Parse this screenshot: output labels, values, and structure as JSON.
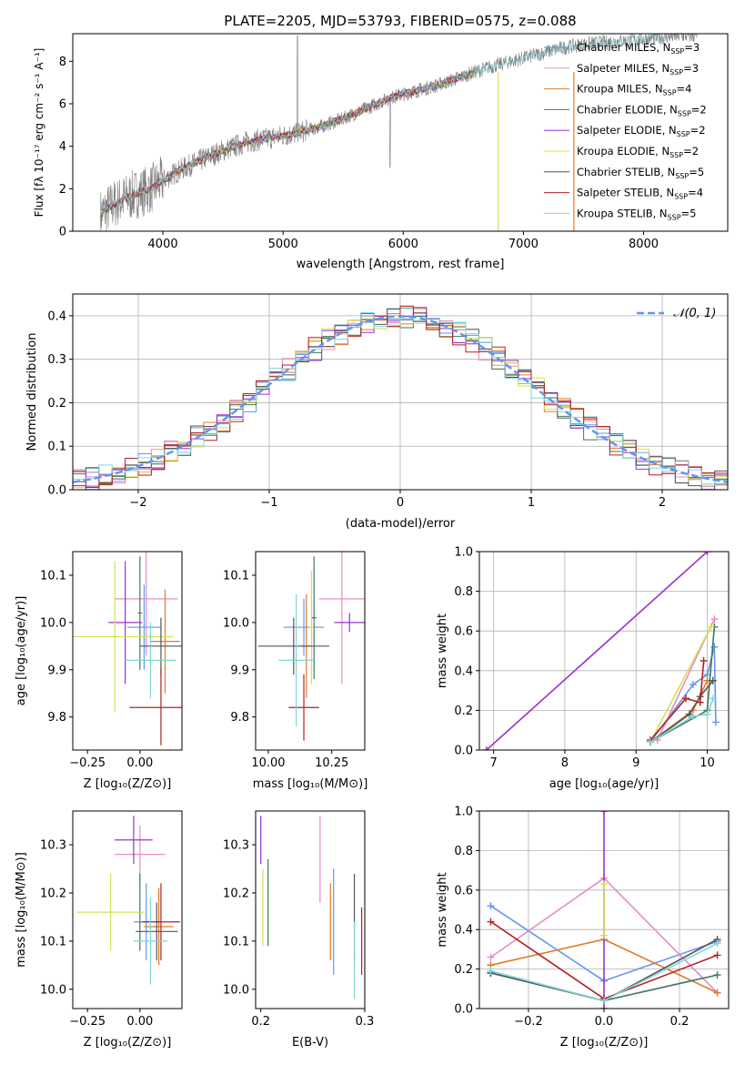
{
  "figure": {
    "title": "PLATE=2205, MJD=53793, FIBERID=0575, z=0.088"
  },
  "legend_series": [
    {
      "name": "Chabrier MILES, N_SSP=3",
      "base": "Chabrier MILES, N",
      "sub": "SSP",
      "tail": "=3",
      "color": "#6495ed"
    },
    {
      "name": "Salpeter MILES, N_SSP=3",
      "base": "Salpeter MILES, N",
      "sub": "SSP",
      "tail": "=3",
      "color": "#e88bc4"
    },
    {
      "name": "Kroupa MILES, N_SSP=4",
      "base": "Kroupa MILES, N",
      "sub": "SSP",
      "tail": "=4",
      "color": "#e07b28"
    },
    {
      "name": "Chabrier ELODIE, N_SSP=2",
      "base": "Chabrier ELODIE, N",
      "sub": "SSP",
      "tail": "=2",
      "color": "#3f7a5c"
    },
    {
      "name": "Salpeter ELODIE, N_SSP=2",
      "base": "Salpeter ELODIE, N",
      "sub": "SSP",
      "tail": "=2",
      "color": "#9932cc"
    },
    {
      "name": "Kroupa ELODIE, N_SSP=2",
      "base": "Kroupa ELODIE, N",
      "sub": "SSP",
      "tail": "=2",
      "color": "#d4e157"
    },
    {
      "name": "Chabrier STELIB, N_SSP=5",
      "base": "Chabrier STELIB, N",
      "sub": "SSP",
      "tail": "=5",
      "color": "#555555"
    },
    {
      "name": "Salpeter STELIB, N_SSP=4",
      "base": "Salpeter STELIB, N",
      "sub": "SSP",
      "tail": "=4",
      "color": "#b22222"
    },
    {
      "name": "Kroupa STELIB, N_SSP=5",
      "base": "Kroupa STELIB, N",
      "sub": "SSP",
      "tail": "=5",
      "color": "#7fd6d9"
    }
  ],
  "chart_data": [
    {
      "id": "spectrum",
      "type": "line",
      "xlabel": "wavelength [Angstrom, rest frame]",
      "ylabel": "Flux [fλ 10⁻¹⁷ erg cm⁻² s⁻¹ A⁻¹]",
      "xlim": [
        3250,
        8700
      ],
      "ylim": [
        0,
        9.3
      ],
      "xticks": [
        4000,
        5000,
        6000,
        7000,
        8000
      ],
      "yticks": [
        0,
        2,
        4,
        6,
        8
      ],
      "data_color": "#808080",
      "data_knots_x": [
        3480,
        3600,
        3750,
        3900,
        4000,
        4150,
        4300,
        4500,
        4700,
        4900,
        5100,
        5300,
        5500,
        5700,
        5900,
        6100,
        6300,
        6500,
        6700,
        6900,
        7100,
        7300,
        7500,
        7700,
        7900,
        8100,
        8300,
        8450
      ],
      "data_knots_y": [
        0.8,
        1.3,
        1.7,
        2.0,
        2.4,
        2.9,
        3.3,
        3.8,
        4.2,
        4.4,
        4.6,
        4.9,
        5.3,
        5.8,
        6.3,
        6.6,
        6.9,
        7.3,
        7.7,
        8.0,
        8.3,
        8.6,
        8.8,
        8.9,
        9.0,
        9.1,
        9.2,
        9.2
      ],
      "model_end_x": 6600,
      "model_drop_lines": [
        {
          "x": 6790,
          "color": "#d4e157"
        },
        {
          "x": 7420,
          "color": "#e07b28"
        }
      ],
      "legend_placement": "right"
    },
    {
      "id": "residual_hist",
      "type": "bar",
      "xlabel": "(data-model)/error",
      "ylabel": "Normed distribution",
      "xlim": [
        -2.5,
        2.5
      ],
      "ylim": [
        0,
        0.45
      ],
      "xticks": [
        -2,
        -1,
        0,
        1,
        2
      ],
      "yticks": [
        0.0,
        0.1,
        0.2,
        0.3,
        0.4
      ],
      "bin_width": 0.1,
      "reference_curve": {
        "label": "𝒩(0, 1)",
        "color": "#6495ed",
        "style": "dashed"
      },
      "grid": true,
      "legend_placement": "top-right"
    },
    {
      "id": "age_vs_Z",
      "type": "scatter",
      "xlabel": "Z [log₁₀(Z/Z⊙)]",
      "ylabel": "age  [log₁₀(age/yr)]",
      "xlim": [
        -0.32,
        0.2
      ],
      "ylim": [
        9.73,
        10.15
      ],
      "xticks": [
        -0.25,
        0.0
      ],
      "yticks": [
        9.8,
        9.9,
        10.0,
        10.1
      ],
      "points": [
        {
          "series": "Chabrier MILES",
          "x": 0.02,
          "y": 9.99,
          "xerr": 0.08,
          "yerr": 0.09
        },
        {
          "series": "Salpeter MILES",
          "x": 0.03,
          "y": 10.05,
          "xerr": 0.15,
          "yerr": 0.12
        },
        {
          "series": "Kroupa MILES",
          "x": 0.12,
          "y": 9.96,
          "xerr": 0.07,
          "yerr": 0.11
        },
        {
          "series": "Chabrier ELODIE",
          "x": 0.0,
          "y": 10.02,
          "xerr": 0.01,
          "yerr": 0.12
        },
        {
          "series": "Salpeter ELODIE",
          "x": -0.07,
          "y": 10.0,
          "xerr": 0.08,
          "yerr": 0.13
        },
        {
          "series": "Kroupa ELODIE",
          "x": -0.12,
          "y": 9.97,
          "xerr": 0.28,
          "yerr": 0.16
        },
        {
          "series": "Chabrier STELIB",
          "x": 0.1,
          "y": 9.95,
          "xerr": 0.1,
          "yerr": 0.06
        },
        {
          "series": "Salpeter STELIB",
          "x": 0.1,
          "y": 9.82,
          "xerr": 0.15,
          "yerr": 0.08
        },
        {
          "series": "Kroupa STELIB",
          "x": 0.05,
          "y": 9.92,
          "xerr": 0.12,
          "yerr": 0.08
        }
      ]
    },
    {
      "id": "age_vs_mass",
      "type": "scatter",
      "xlabel": "mass [log₁₀(M/M⊙)]",
      "ylabel": "",
      "xlim": [
        9.95,
        10.38
      ],
      "ylim": [
        9.73,
        10.15
      ],
      "xticks": [
        10.0,
        10.25
      ],
      "yticks": [
        9.8,
        9.9,
        10.0,
        10.1
      ],
      "points": [
        {
          "series": "Chabrier MILES",
          "x": 10.14,
          "y": 9.99,
          "xerr": 0.08,
          "yerr": 0.06
        },
        {
          "series": "Salpeter MILES",
          "x": 10.29,
          "y": 10.05,
          "xerr": 0.09,
          "yerr": 0.18
        },
        {
          "series": "Kroupa MILES",
          "x": 10.15,
          "y": 9.95,
          "xerr": 0.02,
          "yerr": 0.11
        },
        {
          "series": "Chabrier ELODIE",
          "x": 10.18,
          "y": 10.01,
          "xerr": 0.01,
          "yerr": 0.13
        },
        {
          "series": "Salpeter ELODIE",
          "x": 10.32,
          "y": 10.0,
          "xerr": 0.06,
          "yerr": 0.02
        },
        {
          "series": "Kroupa ELODIE",
          "x": 10.17,
          "y": 9.99,
          "xerr": 0.01,
          "yerr": 0.12
        },
        {
          "series": "Chabrier STELIB",
          "x": 10.1,
          "y": 9.95,
          "xerr": 0.14,
          "yerr": 0.06
        },
        {
          "series": "Salpeter STELIB",
          "x": 10.14,
          "y": 9.82,
          "xerr": 0.06,
          "yerr": 0.07
        },
        {
          "series": "Kroupa STELIB",
          "x": 10.11,
          "y": 9.92,
          "xerr": 0.07,
          "yerr": 0.14
        }
      ]
    },
    {
      "id": "mass_weight_vs_age",
      "type": "line",
      "xlabel": "age  [log₁₀(age/yr)]",
      "ylabel": "mass weight",
      "xlim": [
        6.8,
        10.3
      ],
      "ylim": [
        0,
        1.0
      ],
      "xticks": [
        7,
        8,
        9,
        10
      ],
      "yticks": [
        0.0,
        0.2,
        0.4,
        0.6,
        0.8,
        1.0
      ],
      "grid": true,
      "series": [
        {
          "name": "Chabrier MILES",
          "x": [
            9.2,
            9.8,
            10.0,
            10.1,
            10.12
          ],
          "y": [
            0.04,
            0.33,
            0.38,
            0.52,
            0.14
          ]
        },
        {
          "name": "Salpeter MILES",
          "x": [
            9.3,
            10.1
          ],
          "y": [
            0.05,
            0.66
          ]
        },
        {
          "name": "Kroupa MILES",
          "x": [
            9.2,
            9.8,
            10.0,
            10.08
          ],
          "y": [
            0.04,
            0.2,
            0.35,
            0.35
          ]
        },
        {
          "name": "Chabrier ELODIE",
          "x": [
            9.2,
            10.0,
            10.1
          ],
          "y": [
            0.04,
            0.2,
            0.62
          ]
        },
        {
          "name": "Salpeter ELODIE",
          "x": [
            6.9,
            10.0
          ],
          "y": [
            0.0,
            1.0
          ]
        },
        {
          "name": "Kroupa ELODIE",
          "x": [
            9.2,
            10.05
          ],
          "y": [
            0.04,
            0.62
          ]
        },
        {
          "name": "Chabrier STELIB",
          "x": [
            9.2,
            9.75,
            9.9,
            10.08
          ],
          "y": [
            0.04,
            0.18,
            0.27,
            0.35
          ]
        },
        {
          "name": "Salpeter STELIB",
          "x": [
            9.2,
            9.7,
            9.9,
            9.95
          ],
          "y": [
            0.05,
            0.26,
            0.24,
            0.45
          ]
        },
        {
          "name": "Kroupa STELIB",
          "x": [
            9.2,
            9.8,
            10.0,
            10.08
          ],
          "y": [
            0.04,
            0.17,
            0.18,
            0.26
          ]
        }
      ]
    },
    {
      "id": "mass_vs_Z",
      "type": "scatter",
      "xlabel": "Z [log₁₀(Z/Z⊙)]",
      "ylabel": "mass [log₁₀(M/M⊙)]",
      "xlim": [
        -0.32,
        0.2
      ],
      "ylim": [
        9.96,
        10.37
      ],
      "xticks": [
        -0.25,
        0.0
      ],
      "yticks": [
        10.0,
        10.1,
        10.2,
        10.3
      ],
      "points": [
        {
          "series": "Chabrier MILES",
          "x": 0.03,
          "y": 10.14,
          "xerr": 0.06,
          "yerr": 0.08
        },
        {
          "series": "Salpeter MILES",
          "x": 0.0,
          "y": 10.28,
          "xerr": 0.12,
          "yerr": 0.06
        },
        {
          "series": "Kroupa MILES",
          "x": 0.09,
          "y": 10.13,
          "xerr": 0.07,
          "yerr": 0.08
        },
        {
          "series": "Chabrier ELODIE",
          "x": 0.0,
          "y": 10.16,
          "xerr": 0.01,
          "yerr": 0.08
        },
        {
          "series": "Salpeter ELODIE",
          "x": -0.03,
          "y": 10.31,
          "xerr": 0.09,
          "yerr": 0.05
        },
        {
          "series": "Kroupa ELODIE",
          "x": -0.14,
          "y": 10.16,
          "xerr": 0.16,
          "yerr": 0.08
        },
        {
          "series": "Chabrier STELIB",
          "x": 0.08,
          "y": 10.12,
          "xerr": 0.1,
          "yerr": 0.06
        },
        {
          "series": "Salpeter STELIB",
          "x": 0.1,
          "y": 10.14,
          "xerr": 0.09,
          "yerr": 0.08
        },
        {
          "series": "Kroupa STELIB",
          "x": 0.05,
          "y": 10.1,
          "xerr": 0.08,
          "yerr": 0.09
        }
      ]
    },
    {
      "id": "mass_vs_ebv",
      "type": "scatter",
      "xlabel": "E(B-V)",
      "ylabel": "",
      "xlim": [
        0.195,
        0.3
      ],
      "ylim": [
        9.96,
        10.37
      ],
      "xticks": [
        0.2,
        0.3
      ],
      "yticks": [
        10.0,
        10.1,
        10.2,
        10.3
      ],
      "points": [
        {
          "series": "Chabrier MILES",
          "x": 0.27,
          "y": 10.14,
          "xerr": 0.0,
          "yerr": 0.11
        },
        {
          "series": "Salpeter MILES",
          "x": 0.257,
          "y": 10.27,
          "xerr": 0.0,
          "yerr": 0.09
        },
        {
          "series": "Kroupa MILES",
          "x": 0.267,
          "y": 10.14,
          "xerr": 0.0,
          "yerr": 0.08
        },
        {
          "series": "Chabrier ELODIE",
          "x": 0.207,
          "y": 10.18,
          "xerr": 0.0,
          "yerr": 0.09
        },
        {
          "series": "Salpeter ELODIE",
          "x": 0.2,
          "y": 10.31,
          "xerr": 0.0,
          "yerr": 0.05
        },
        {
          "series": "Kroupa ELODIE",
          "x": 0.202,
          "y": 10.17,
          "xerr": 0.0,
          "yerr": 0.08
        },
        {
          "series": "Chabrier STELIB",
          "x": 0.29,
          "y": 10.15,
          "xerr": 0.0,
          "yerr": 0.09
        },
        {
          "series": "Salpeter STELIB",
          "x": 0.297,
          "y": 10.1,
          "xerr": 0.0,
          "yerr": 0.07
        },
        {
          "series": "Kroupa STELIB",
          "x": 0.29,
          "y": 10.06,
          "xerr": 0.0,
          "yerr": 0.08
        }
      ]
    },
    {
      "id": "mass_weight_vs_Z",
      "type": "line",
      "xlabel": "Z [log₁₀(Z/Z⊙)]",
      "ylabel": "mass weight",
      "xlim": [
        -0.33,
        0.33
      ],
      "ylim": [
        0,
        1.0
      ],
      "xticks": [
        -0.2,
        0.0,
        0.2
      ],
      "yticks": [
        0.0,
        0.2,
        0.4,
        0.6,
        0.8,
        1.0
      ],
      "grid": true,
      "series": [
        {
          "name": "Chabrier MILES",
          "x": [
            -0.3,
            0.0,
            0.3
          ],
          "y": [
            0.52,
            0.14,
            0.34
          ]
        },
        {
          "name": "Salpeter MILES",
          "x": [
            -0.3,
            0.0,
            0.3
          ],
          "y": [
            0.26,
            0.66,
            0.08
          ]
        },
        {
          "name": "Kroupa MILES",
          "x": [
            -0.3,
            0.0,
            0.3
          ],
          "y": [
            0.22,
            0.35,
            0.08
          ]
        },
        {
          "name": "Chabrier ELODIE",
          "x": [
            -0.3,
            0.0,
            0.3
          ],
          "y": [
            0.18,
            0.04,
            0.17
          ]
        },
        {
          "name": "Salpeter ELODIE",
          "x": [
            0.0,
            0.0
          ],
          "y": [
            0.0,
            1.0
          ]
        },
        {
          "name": "Kroupa ELODIE",
          "x": [
            0.0,
            0.0
          ],
          "y": [
            0.37,
            0.63
          ]
        },
        {
          "name": "Chabrier STELIB",
          "x": [
            -0.3,
            0.0,
            0.3
          ],
          "y": [
            0.18,
            0.04,
            0.35
          ]
        },
        {
          "name": "Salpeter STELIB",
          "x": [
            -0.3,
            0.0,
            0.3
          ],
          "y": [
            0.44,
            0.05,
            0.27
          ]
        },
        {
          "name": "Kroupa STELIB",
          "x": [
            -0.3,
            0.0,
            0.3
          ],
          "y": [
            0.19,
            0.04,
            0.33
          ]
        }
      ]
    }
  ]
}
